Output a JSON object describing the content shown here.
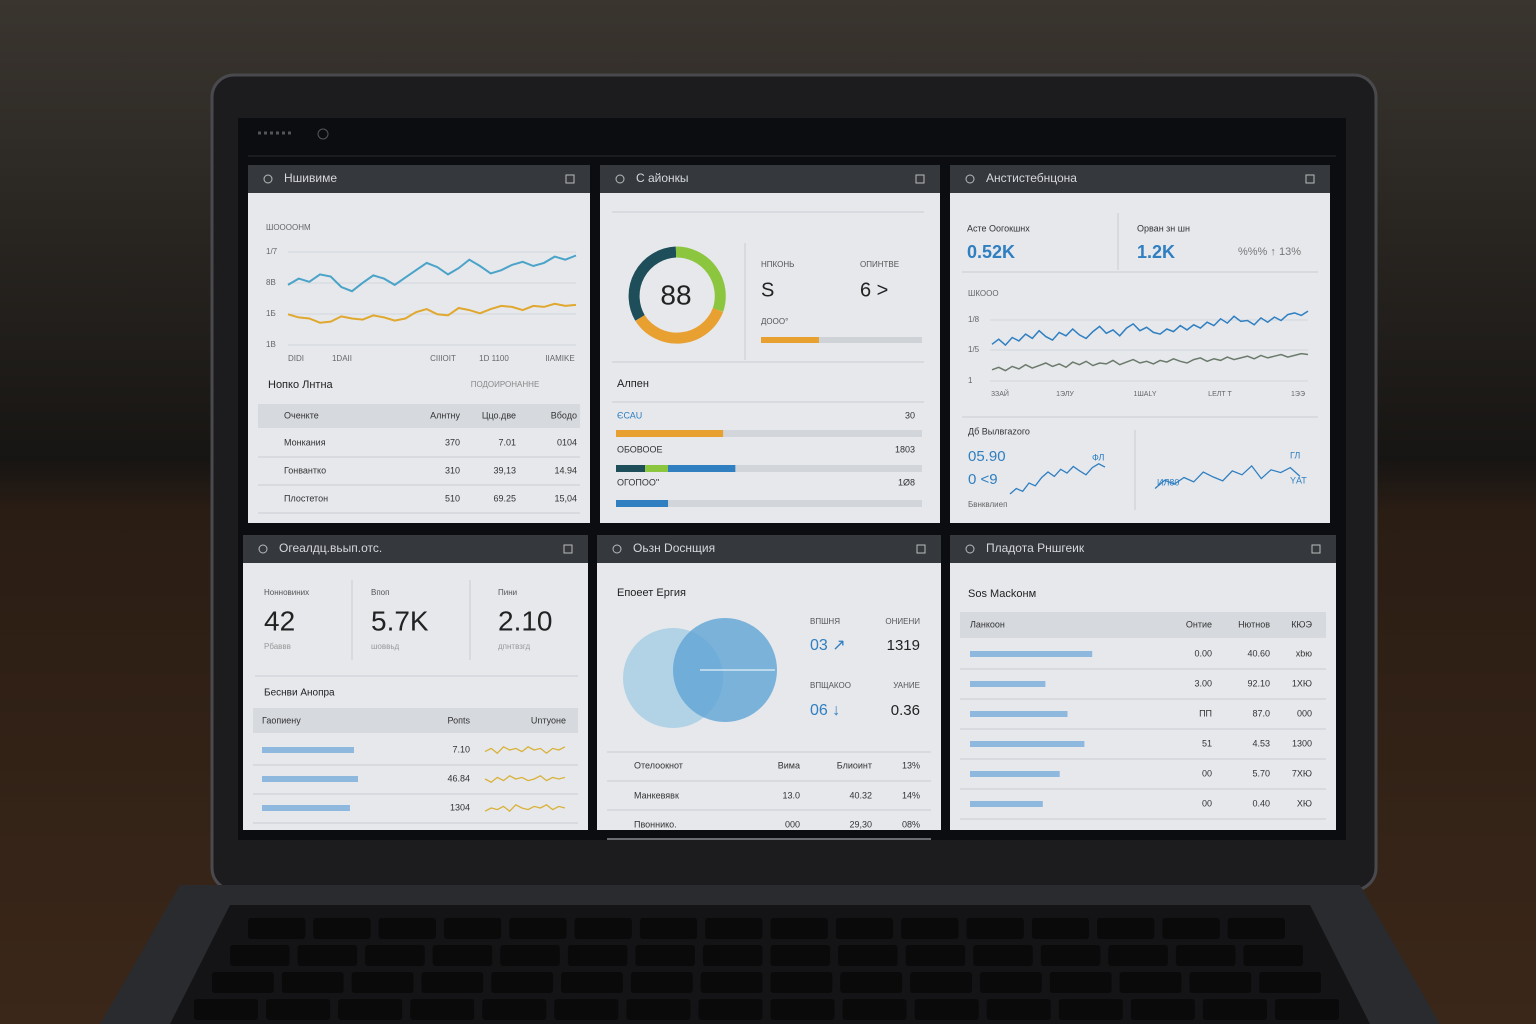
{
  "panels": [
    {
      "title": "Ншивиме",
      "chart": {
        "label": "ШOOOOНМ",
        "y_labels": [
          "1/7",
          "8B",
          "1Б",
          "1B"
        ],
        "x_labels": [
          "DIDI",
          "1DAII",
          "CIIIOIT",
          "1D 1100",
          "IIAMIKE"
        ],
        "ylim": [
          0,
          10
        ],
        "series": [
          {
            "color": "#4aa3c8",
            "values": [
              6.2,
              6.8,
              6.5,
              7.2,
              7.0,
              6.0,
              5.6,
              6.4,
              7.1,
              6.8,
              6.2,
              6.9,
              7.6,
              8.3,
              7.9,
              7.2,
              7.8,
              8.6,
              8.0,
              7.3,
              7.6,
              8.1,
              8.4,
              8.0,
              8.3,
              8.9,
              8.6,
              9.0
            ]
          },
          {
            "color": "#e0a82e",
            "values": [
              3.4,
              3.1,
              3.0,
              2.6,
              2.7,
              3.2,
              3.0,
              2.9,
              3.3,
              3.1,
              2.8,
              3.0,
              3.6,
              3.9,
              3.4,
              3.3,
              4.0,
              3.8,
              3.5,
              3.9,
              4.2,
              4.1,
              3.8,
              4.2,
              4.1,
              4.4,
              4.2,
              4.3
            ]
          }
        ]
      },
      "subtitle": "Нопко Лнтна",
      "note": "ПОДОИРОНАННЕ",
      "table": {
        "columns": [
          "Оченкте",
          "Алнтну",
          "Ццо.две",
          "Вбодо"
        ],
        "rows": [
          [
            "Монкания",
            "370",
            "7.01",
            "0104"
          ],
          [
            "Гонвантко",
            "310",
            "39,13",
            "14.94"
          ],
          [
            "Плостетон",
            "510",
            "69.25",
            "15,04"
          ]
        ]
      }
    },
    {
      "title": "С айонкы",
      "gauge": "88",
      "stats": [
        {
          "label": "НПКОНЬ",
          "value": "S"
        },
        {
          "label": "ОПИНТВЕ",
          "value": "6 >"
        }
      ],
      "stat_note": "ДООО°",
      "progress": 36,
      "subtitle": "Алпен",
      "bars": [
        {
          "label": "ЄСАU",
          "value": "30",
          "segments": [
            35
          ],
          "colors": [
            "#e8a030"
          ]
        },
        {
          "label": "ОБОВООЕ",
          "value": "1803",
          "segments": [
            9.5,
            7.5,
            22
          ],
          "colors": [
            "#1e4e5a",
            "#8cc63f",
            "#2f7fc1"
          ]
        },
        {
          "label": "ОГОПОО''",
          "value": "1Ø8",
          "segments": [
            17
          ],
          "colors": [
            "#2f7fc1"
          ]
        }
      ]
    },
    {
      "title": "Анстистебнцона",
      "kpis": [
        {
          "label": "Асте Оогокшнх",
          "value": "0.52K"
        },
        {
          "label": "Орван зн шн",
          "value": "1.2K"
        }
      ],
      "kpi_delta": "%%% ↑ 13%",
      "chart": {
        "label": "ШКООО",
        "y_labels": [
          "1/8",
          "1/5",
          "1"
        ],
        "x_labels": [
          "3ЗАЙ",
          "1ЭЛУ",
          "1ШАLY",
          "LЕЛТ Т",
          "1ЭЭ"
        ],
        "ylim": [
          0,
          10
        ],
        "series": [
          {
            "color": "#2f7fc1",
            "values": [
              4.2,
              4.8,
              4.1,
              5.0,
              4.6,
              5.4,
              4.9,
              5.8,
              5.1,
              4.7,
              5.6,
              5.2,
              6.0,
              5.3,
              4.9,
              5.7,
              6.3,
              5.5,
              5.9,
              5.2,
              6.1,
              6.6,
              5.8,
              6.2,
              5.6,
              5.4,
              6.0,
              5.7,
              6.4,
              5.9,
              6.5,
              6.1,
              6.8,
              6.4,
              7.2,
              6.7,
              7.5,
              6.9,
              7.0,
              6.5,
              7.3,
              6.8,
              7.4,
              7.0,
              7.7,
              7.9,
              7.6,
              8.1
            ]
          },
          {
            "color": "#6b7a6b",
            "values": [
              1.2,
              1.5,
              1.1,
              1.6,
              1.3,
              1.8,
              1.4,
              1.7,
              2.0,
              1.6,
              1.9,
              1.5,
              2.1,
              1.8,
              2.2,
              1.7,
              2.0,
              1.9,
              2.3,
              1.8,
              2.1,
              2.4,
              2.0,
              2.2,
              1.9,
              2.3,
              2.1,
              2.5,
              2.2,
              2.0,
              2.4,
              2.6,
              2.2,
              2.5,
              2.3,
              2.7,
              2.4,
              2.6,
              2.8,
              2.5,
              2.9,
              2.6,
              2.8,
              3.0,
              2.7,
              2.9,
              3.1,
              3.0
            ]
          }
        ]
      },
      "section": "Дб Вылвгаzого",
      "section_values": [
        "05.90",
        "0 <9"
      ],
      "section_note": "Бвнквлиеп",
      "minis": [
        {
          "labels": [
            "ФЛ"
          ],
          "ylim": [
            0,
            10
          ],
          "color": "#2f7fc1",
          "values": [
            2,
            3,
            2.5,
            4,
            3.5,
            5,
            6,
            5.2,
            6.5,
            5.8,
            7,
            6.2,
            5.5,
            6.8,
            7.5,
            6.9
          ]
        },
        {
          "labels": [
            "ГЛ",
            "ИЛ80",
            "YАТ"
          ],
          "ylim": [
            0,
            10
          ],
          "color": "#2f7fc1",
          "values": [
            3,
            4.5,
            3.8,
            5,
            4.2,
            6,
            5.1,
            4.4,
            6.2,
            5.5,
            7.1,
            4.8,
            6.4,
            5.9,
            6.8,
            5.2
          ]
        }
      ]
    },
    {
      "title": "Огеалдц.вьып.отс.",
      "kpis": [
        {
          "label": "Нонновиних",
          "value": "42",
          "note": "Рбаввв"
        },
        {
          "label": "Впоп",
          "value": "5.7K",
          "note": "шоввьд"
        },
        {
          "label": "Пини",
          "value": "2.10",
          "note": "дпнтвзгд"
        }
      ],
      "subtitle": "Беснви Анопра",
      "table": {
        "columns": [
          "Гаопиену",
          "Ропts",
          "Unтуоне"
        ],
        "rows": [
          {
            "bar": 92,
            "value": "7.10",
            "spark": [
              4,
              6,
              3,
              7,
              5,
              6,
              4,
              7,
              5,
              6,
              3,
              6,
              5,
              7
            ]
          },
          {
            "bar": 96,
            "value": "46.84",
            "spark": [
              5,
              3,
              6,
              4,
              7,
              5,
              6,
              4,
              5,
              7,
              4,
              6,
              5,
              6
            ]
          },
          {
            "bar": 88,
            "value": "1304",
            "spark": [
              3,
              5,
              4,
              6,
              3,
              7,
              5,
              4,
              6,
              5,
              7,
              4,
              6,
              5
            ]
          }
        ]
      }
    },
    {
      "title": "Оьзн Dоснщия",
      "subtitle": "Епоеет Ергия",
      "stats": [
        {
          "label": "ВПШНЯ",
          "value": "03 ↗"
        },
        {
          "label": "ОНИЕНИ",
          "value": "1319"
        },
        {
          "label": "ВПЩАКОО",
          "value": "06 ↓"
        },
        {
          "label": "УАНИЕ",
          "value": "0.36"
        }
      ],
      "table": {
        "columns": [
          "Отелоокнот",
          "Вима",
          "Блиоинт",
          "13%"
        ],
        "rows": [
          [
            "Манкевявк",
            "13.0",
            "40.32",
            "14%"
          ],
          [
            "Пвоннико.",
            "000",
            "29,30",
            "08%"
          ]
        ]
      }
    },
    {
      "title": "Пладота Рншгеик",
      "subtitle": "Sos Масkонм",
      "table": {
        "columns": [
          "Ланкоон",
          "Онтие",
          "Нютнов",
          "КЮЭ"
        ],
        "rows": [
          {
            "bar": 94,
            "cells": [
              "0.00",
              "40.60",
              "хbю"
            ]
          },
          {
            "bar": 58,
            "cells": [
              "3.00",
              "92.10",
              "1ХЮ"
            ]
          },
          {
            "bar": 75,
            "cells": [
              "ПП",
              "87.0",
              "000"
            ]
          },
          {
            "bar": 88,
            "cells": [
              "51",
              "4.53",
              "1300"
            ]
          },
          {
            "bar": 69,
            "cells": [
              "00",
              "5.70",
              "7ХЮ"
            ]
          },
          {
            "bar": 56,
            "cells": [
              "00",
              "0.40",
              "ХЮ"
            ]
          }
        ]
      }
    }
  ]
}
